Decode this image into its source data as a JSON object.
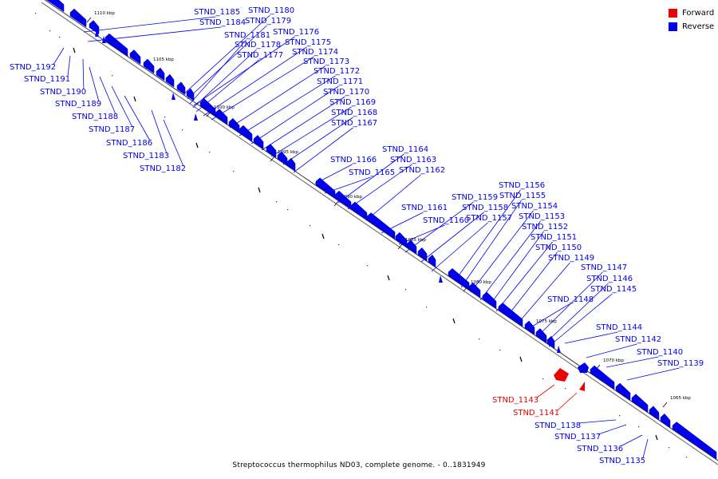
{
  "legend": {
    "forward": {
      "label": "Forward",
      "color": "#ee0000"
    },
    "reverse": {
      "label": "Reverse",
      "color": "#0000ee"
    }
  },
  "caption": "Streptococcus thermophilus ND03, complete genome. - 0..1831949",
  "scale": {
    "ticks": [
      "1110 kbp",
      "1105 kbp",
      "1100 kbp",
      "1095 kbp",
      "1090 kbp",
      "1085 kbp",
      "1080 kbp",
      "1075 kbp",
      "1070 kbp",
      "1065 kbp"
    ]
  },
  "genes": {
    "reverse_upper": [
      "STND_1185",
      "STND_1180",
      "STND_1184",
      "STND_1179",
      "STND_1181",
      "STND_1176",
      "STND_1178",
      "STND_1175",
      "STND_1177",
      "STND_1174",
      "STND_1173",
      "STND_1172",
      "STND_1171",
      "STND_1170",
      "STND_1169",
      "STND_1168",
      "STND_1167",
      "STND_1166",
      "STND_1164",
      "STND_1163",
      "STND_1165",
      "STND_1162",
      "STND_1156",
      "STND_1159",
      "STND_1155",
      "STND_1158",
      "STND_1154",
      "STND_1161",
      "STND_1157",
      "STND_1153",
      "STND_1160",
      "STND_1152",
      "STND_1151",
      "STND_1150",
      "STND_1149",
      "STND_1147",
      "STND_1146",
      "STND_1145",
      "STND_1148",
      "STND_1144",
      "STND_1142",
      "STND_1140",
      "STND_1139"
    ],
    "reverse_lower": [
      "STND_1192",
      "STND_1191",
      "STND_1190",
      "STND_1189",
      "STND_1188",
      "STND_1187",
      "STND_1186",
      "STND_1183",
      "STND_1182",
      "STND_1138",
      "STND_1137",
      "STND_1136",
      "STND_1135"
    ],
    "forward": [
      "STND_1143",
      "STND_1141"
    ]
  }
}
